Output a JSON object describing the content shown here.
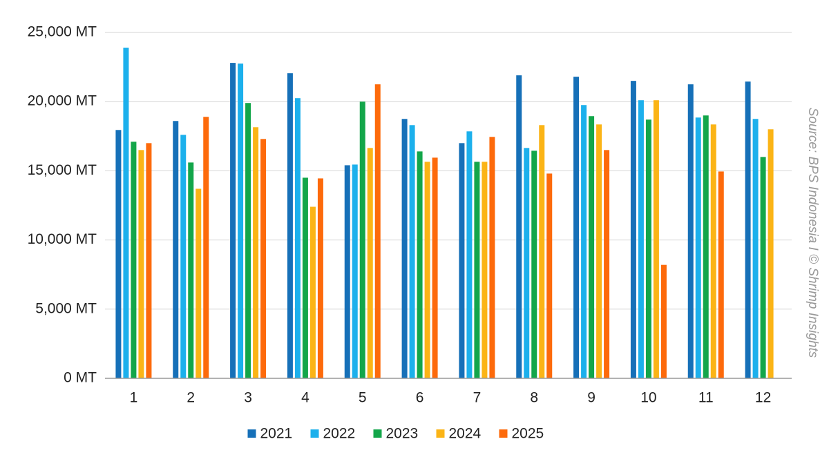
{
  "chart_data": {
    "type": "bar",
    "source": "Source: BPS Indonesia I © Shrimp Insights",
    "categories": [
      "1",
      "2",
      "3",
      "4",
      "5",
      "6",
      "7",
      "8",
      "9",
      "10",
      "11",
      "12"
    ],
    "series": [
      {
        "name": "2021",
        "color": "#1670b8",
        "values": [
          17950,
          18600,
          22800,
          22050,
          15400,
          18750,
          17000,
          21900,
          21800,
          21500,
          21250,
          21450
        ]
      },
      {
        "name": "2022",
        "color": "#1cb0ec",
        "values": [
          23900,
          17600,
          22750,
          20250,
          15450,
          18300,
          17850,
          16650,
          19750,
          20100,
          18850,
          18750
        ]
      },
      {
        "name": "2023",
        "color": "#13a64a",
        "values": [
          17100,
          15600,
          19900,
          14500,
          20000,
          16400,
          15650,
          16450,
          18950,
          18700,
          19000,
          16000
        ]
      },
      {
        "name": "2024",
        "color": "#fbb416",
        "values": [
          16500,
          13700,
          18150,
          12400,
          16650,
          15650,
          15650,
          18300,
          18350,
          20100,
          18350,
          18000
        ]
      },
      {
        "name": "2025",
        "color": "#fd6a0b",
        "values": [
          17000,
          18900,
          17300,
          14450,
          21250,
          15950,
          17450,
          14800,
          16500,
          8200,
          14950,
          null
        ]
      }
    ],
    "ylim": [
      0,
      25000
    ],
    "yticks": [
      {
        "value": 0,
        "label": "0 MT"
      },
      {
        "value": 5000,
        "label": "5,000 MT"
      },
      {
        "value": 10000,
        "label": "10,000 MT"
      },
      {
        "value": 15000,
        "label": "15,000 MT"
      },
      {
        "value": 20000,
        "label": "20,000 MT"
      },
      {
        "value": 25000,
        "label": "25,000 MT"
      }
    ],
    "grid": true
  }
}
